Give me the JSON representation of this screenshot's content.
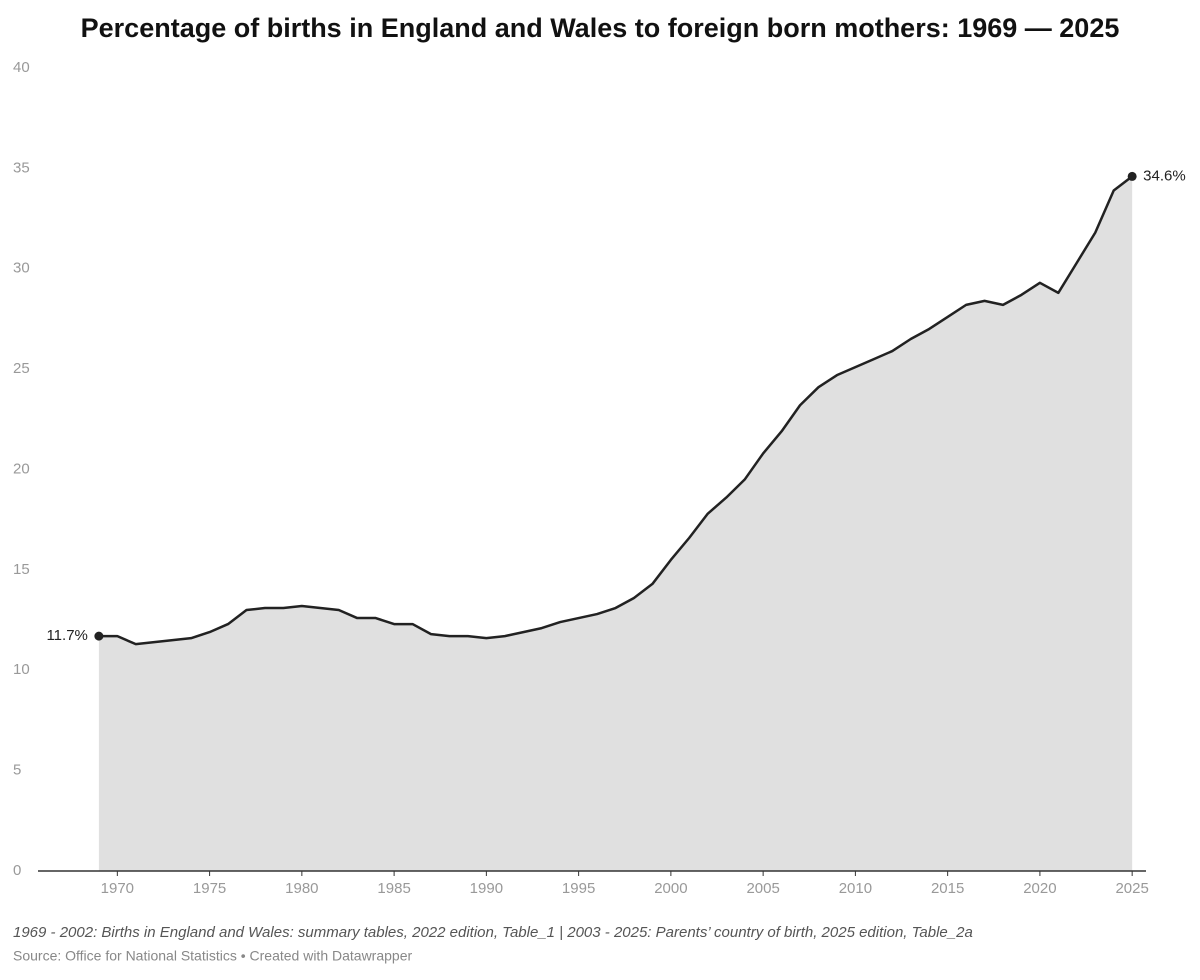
{
  "chart_data": {
    "type": "area",
    "title": "Percentage of births in England and Wales to foreign born mothers: 1969 — 2025",
    "x": [
      1969,
      1970,
      1971,
      1972,
      1973,
      1974,
      1975,
      1976,
      1977,
      1978,
      1979,
      1980,
      1981,
      1982,
      1983,
      1984,
      1985,
      1986,
      1987,
      1988,
      1989,
      1990,
      1991,
      1992,
      1993,
      1994,
      1995,
      1996,
      1997,
      1998,
      1999,
      2000,
      2001,
      2002,
      2003,
      2004,
      2005,
      2006,
      2007,
      2008,
      2009,
      2010,
      2011,
      2012,
      2013,
      2014,
      2015,
      2016,
      2017,
      2018,
      2019,
      2020,
      2021,
      2022,
      2023,
      2024,
      2025
    ],
    "values": [
      11.7,
      11.7,
      11.3,
      11.4,
      11.5,
      11.6,
      11.9,
      12.3,
      13.0,
      13.1,
      13.1,
      13.2,
      13.1,
      13.0,
      12.6,
      12.6,
      12.3,
      12.3,
      11.8,
      11.7,
      11.7,
      11.6,
      11.7,
      11.9,
      12.1,
      12.4,
      12.6,
      12.8,
      13.1,
      13.6,
      14.3,
      15.5,
      16.6,
      17.8,
      18.6,
      19.5,
      20.8,
      21.9,
      23.2,
      24.1,
      24.7,
      25.1,
      25.5,
      25.9,
      26.5,
      27.0,
      27.6,
      28.2,
      28.4,
      28.2,
      28.7,
      29.3,
      28.8,
      30.3,
      31.8,
      33.9,
      34.6
    ],
    "value_labels": [
      "11.7%",
      null,
      null,
      null,
      null,
      null,
      null,
      null,
      null,
      null,
      null,
      null,
      null,
      null,
      null,
      null,
      null,
      null,
      null,
      null,
      null,
      null,
      null,
      null,
      null,
      null,
      null,
      null,
      null,
      null,
      null,
      null,
      null,
      null,
      null,
      null,
      null,
      null,
      null,
      null,
      null,
      null,
      null,
      null,
      null,
      null,
      null,
      null,
      null,
      null,
      null,
      null,
      null,
      null,
      null,
      null,
      "34.6%"
    ],
    "color": "#222222",
    "fill": "#e0e0e0",
    "xlim": [
      1965.7,
      2025.75
    ],
    "xticks": [
      1970,
      1975,
      1980,
      1985,
      1990,
      1995,
      2000,
      2005,
      2010,
      2015,
      2020,
      2025
    ],
    "ylim": [
      0,
      40
    ],
    "yticks": [
      0,
      5,
      10,
      15,
      20,
      25,
      30,
      35,
      40
    ],
    "grid": false,
    "notes": "1969 - 2002: Births in England and Wales: summary tables, 2022 edition, Table_1 | 2003 - 2025: Parents’ country of birth, 2025 edition, Table_2a",
    "source": "Source: Office for National Statistics • Created with Datawrapper"
  }
}
